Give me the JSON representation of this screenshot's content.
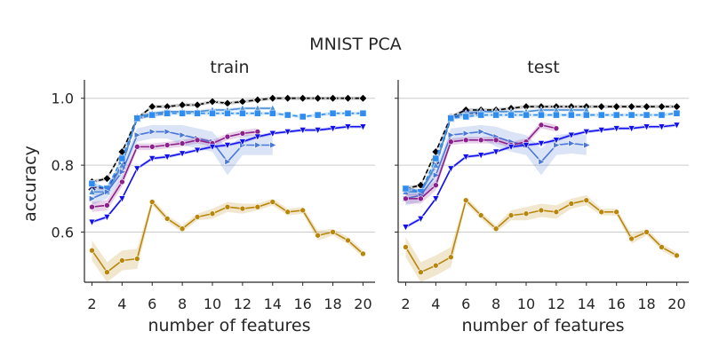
{
  "chart_data": {
    "type": "line",
    "suptitle": "MNIST PCA",
    "xlabel": "number of features",
    "ylabel": "accuracy",
    "xlim": [
      1.5,
      20.8
    ],
    "ylim": [
      0.45,
      1.055
    ],
    "xticks": [
      2,
      4,
      6,
      8,
      10,
      12,
      14,
      16,
      18,
      20
    ],
    "yticks": [
      0.6,
      0.8,
      1.0
    ],
    "ytick_labels": [
      "0.6",
      "0.8",
      "1.0"
    ],
    "grid": "horizontal",
    "panels": [
      {
        "title": "train",
        "series": [
          {
            "name": "black-diamond",
            "color": "#000000",
            "dash": "dashed",
            "marker": "diamond",
            "x": [
              2,
              3,
              4,
              5,
              6,
              7,
              8,
              9,
              10,
              11,
              12,
              13,
              14,
              15,
              16,
              17,
              18,
              19,
              20
            ],
            "y": [
              0.75,
              0.76,
              0.84,
              0.94,
              0.975,
              0.975,
              0.98,
              0.98,
              0.99,
              0.985,
              0.99,
              0.995,
              1.0,
              1.0,
              1.0,
              1.0,
              1.0,
              1.0,
              1.0
            ],
            "band": [
              0.005,
              0.005,
              0.005,
              0.005,
              0.005,
              0.005,
              0.005,
              0.005,
              0.005,
              0.005,
              0.005,
              0.005,
              0.005,
              0.005,
              0.005,
              0.005,
              0.005,
              0.005,
              0.005
            ]
          },
          {
            "name": "navy-x",
            "color": "#1a1a6e",
            "dash": "dashed",
            "marker": "x",
            "x": [
              2,
              3,
              4,
              5,
              6,
              7
            ],
            "y": [
              0.735,
              0.73,
              0.8,
              0.94,
              0.95,
              0.955
            ],
            "band": [
              0.005,
              0.005,
              0.01,
              0.005,
              0.005,
              0.005
            ]
          },
          {
            "name": "light-blue-triangle-up",
            "color": "#4f8fd6",
            "dash": "solid",
            "marker": "triangle-up",
            "x": [
              2,
              3,
              4,
              5,
              6,
              7,
              8,
              9,
              10,
              11,
              12,
              13,
              14
            ],
            "y": [
              0.72,
              0.72,
              0.8,
              0.945,
              0.955,
              0.96,
              0.96,
              0.96,
              0.965,
              0.965,
              0.97,
              0.97,
              0.97
            ],
            "band": [
              0.01,
              0.01,
              0.01,
              0.005,
              0.005,
              0.005,
              0.005,
              0.005,
              0.005,
              0.005,
              0.005,
              0.005,
              0.005
            ]
          },
          {
            "name": "blue-square",
            "color": "#2f8cf0",
            "dash": "dashed",
            "marker": "square",
            "x": [
              2,
              3,
              4,
              5,
              6,
              7,
              8,
              9,
              10,
              11,
              12,
              13,
              14,
              15,
              16,
              17,
              18,
              19,
              20
            ],
            "y": [
              0.745,
              0.73,
              0.82,
              0.94,
              0.95,
              0.955,
              0.955,
              0.955,
              0.955,
              0.955,
              0.955,
              0.955,
              0.955,
              0.95,
              0.945,
              0.95,
              0.955,
              0.955,
              0.955
            ],
            "band": [
              0.005,
              0.005,
              0.005,
              0.005,
              0.005,
              0.005,
              0.005,
              0.005,
              0.005,
              0.005,
              0.005,
              0.005,
              0.005,
              0.005,
              0.005,
              0.005,
              0.005,
              0.005,
              0.005
            ]
          },
          {
            "name": "steelblue-triangle-right",
            "color": "#4a78d8",
            "dash": "solid",
            "marker": "triangle-right",
            "x": [
              2,
              3,
              4,
              5,
              6,
              7,
              8,
              9,
              10,
              11,
              12,
              13,
              14
            ],
            "y": [
              0.7,
              0.72,
              0.78,
              0.89,
              0.9,
              0.9,
              0.89,
              0.88,
              0.87,
              0.81,
              0.86,
              0.86,
              0.86
            ],
            "band": [
              0.02,
              0.02,
              0.02,
              0.02,
              0.02,
              0.02,
              0.03,
              0.03,
              0.03,
              0.04,
              0.03,
              0.03,
              0.03
            ]
          },
          {
            "name": "purple-dot",
            "color": "#8b1f8b",
            "dash": "solid",
            "marker": "circle",
            "x": [
              2,
              3,
              4,
              5,
              6,
              7,
              8,
              9,
              10,
              11,
              12,
              13
            ],
            "y": [
              0.675,
              0.68,
              0.75,
              0.855,
              0.855,
              0.86,
              0.865,
              0.875,
              0.865,
              0.885,
              0.895,
              0.9
            ],
            "band": [
              0.015,
              0.015,
              0.015,
              0.01,
              0.01,
              0.01,
              0.01,
              0.01,
              0.01,
              0.01,
              0.01,
              0.01
            ]
          },
          {
            "name": "blue-triangle-down",
            "color": "#1010ee",
            "dash": "solid",
            "marker": "triangle-down",
            "x": [
              2,
              3,
              4,
              5,
              6,
              7,
              8,
              9,
              10,
              11,
              12,
              13,
              14,
              15,
              16,
              17,
              18,
              19,
              20
            ],
            "y": [
              0.63,
              0.645,
              0.7,
              0.79,
              0.82,
              0.825,
              0.835,
              0.845,
              0.855,
              0.86,
              0.87,
              0.885,
              0.895,
              0.9,
              0.905,
              0.905,
              0.91,
              0.915,
              0.915
            ],
            "band": [
              0.005,
              0.005,
              0.005,
              0.005,
              0.005,
              0.005,
              0.005,
              0.005,
              0.005,
              0.005,
              0.005,
              0.005,
              0.005,
              0.005,
              0.005,
              0.005,
              0.005,
              0.005,
              0.005
            ]
          },
          {
            "name": "gold-dot",
            "color": "#b8860b",
            "dash": "solid",
            "marker": "circle",
            "x": [
              2,
              3,
              4,
              5,
              6,
              7,
              8,
              9,
              10,
              11,
              12,
              13,
              14,
              15,
              16,
              17,
              18,
              19,
              20
            ],
            "y": [
              0.545,
              0.48,
              0.515,
              0.52,
              0.69,
              0.64,
              0.61,
              0.645,
              0.655,
              0.675,
              0.67,
              0.675,
              0.69,
              0.66,
              0.665,
              0.59,
              0.6,
              0.575,
              0.535
            ],
            "band": [
              0.03,
              0.03,
              0.03,
              0.03,
              0.01,
              0.01,
              0.01,
              0.01,
              0.015,
              0.015,
              0.015,
              0.01,
              0.01,
              0.01,
              0.01,
              0.015,
              0.01,
              0.01,
              0.01
            ]
          }
        ]
      },
      {
        "title": "test",
        "series": [
          {
            "name": "black-diamond",
            "color": "#000000",
            "dash": "dashed",
            "marker": "diamond",
            "x": [
              2,
              3,
              4,
              5,
              6,
              7,
              8,
              9,
              10,
              11,
              12,
              13,
              14,
              15,
              16,
              17,
              18,
              19,
              20
            ],
            "y": [
              0.73,
              0.74,
              0.84,
              0.945,
              0.965,
              0.965,
              0.965,
              0.97,
              0.975,
              0.975,
              0.975,
              0.975,
              0.975,
              0.975,
              0.975,
              0.975,
              0.975,
              0.975,
              0.975
            ],
            "band": [
              0.005,
              0.005,
              0.005,
              0.005,
              0.005,
              0.005,
              0.005,
              0.005,
              0.005,
              0.005,
              0.005,
              0.005,
              0.005,
              0.005,
              0.005,
              0.005,
              0.005,
              0.005,
              0.005
            ]
          },
          {
            "name": "navy-x",
            "color": "#1a1a6e",
            "dash": "dashed",
            "marker": "x",
            "x": [
              2,
              3,
              4,
              5,
              6,
              7
            ],
            "y": [
              0.73,
              0.72,
              0.8,
              0.94,
              0.955,
              0.955
            ],
            "band": [
              0.005,
              0.005,
              0.01,
              0.005,
              0.005,
              0.005
            ]
          },
          {
            "name": "light-blue-triangle-up",
            "color": "#4f8fd6",
            "dash": "solid",
            "marker": "triangle-up",
            "x": [
              2,
              3,
              4,
              5,
              6,
              7,
              8,
              9,
              10,
              11,
              12,
              13,
              14
            ],
            "y": [
              0.72,
              0.72,
              0.8,
              0.945,
              0.955,
              0.96,
              0.96,
              0.96,
              0.96,
              0.965,
              0.965,
              0.965,
              0.965
            ],
            "band": [
              0.01,
              0.01,
              0.01,
              0.005,
              0.005,
              0.005,
              0.005,
              0.005,
              0.005,
              0.005,
              0.005,
              0.005,
              0.005
            ]
          },
          {
            "name": "blue-square",
            "color": "#2f8cf0",
            "dash": "dashed",
            "marker": "square",
            "x": [
              2,
              3,
              4,
              5,
              6,
              7,
              8,
              9,
              10,
              11,
              12,
              13,
              14,
              15,
              16,
              17,
              18,
              19,
              20
            ],
            "y": [
              0.73,
              0.72,
              0.82,
              0.94,
              0.945,
              0.95,
              0.95,
              0.95,
              0.95,
              0.95,
              0.95,
              0.95,
              0.95,
              0.95,
              0.95,
              0.95,
              0.95,
              0.95,
              0.955
            ],
            "band": [
              0.005,
              0.005,
              0.005,
              0.005,
              0.005,
              0.005,
              0.005,
              0.005,
              0.005,
              0.005,
              0.005,
              0.005,
              0.005,
              0.005,
              0.005,
              0.005,
              0.005,
              0.005,
              0.005
            ]
          },
          {
            "name": "steelblue-triangle-right",
            "color": "#4a78d8",
            "dash": "solid",
            "marker": "triangle-right",
            "x": [
              2,
              3,
              4,
              5,
              6,
              7,
              8,
              9,
              10,
              11,
              12,
              13,
              14
            ],
            "y": [
              0.7,
              0.71,
              0.77,
              0.89,
              0.895,
              0.9,
              0.885,
              0.87,
              0.86,
              0.81,
              0.86,
              0.865,
              0.86
            ],
            "band": [
              0.02,
              0.02,
              0.02,
              0.02,
              0.02,
              0.02,
              0.03,
              0.03,
              0.03,
              0.04,
              0.03,
              0.03,
              0.03
            ]
          },
          {
            "name": "purple-dot",
            "color": "#8b1f8b",
            "dash": "solid",
            "marker": "circle",
            "x": [
              2,
              3,
              4,
              5,
              6,
              7,
              8,
              9,
              10,
              11,
              12
            ],
            "y": [
              0.7,
              0.7,
              0.74,
              0.87,
              0.875,
              0.875,
              0.875,
              0.86,
              0.87,
              0.92,
              0.91
            ],
            "band": [
              0.015,
              0.015,
              0.015,
              0.01,
              0.01,
              0.01,
              0.01,
              0.01,
              0.01,
              0.01,
              0.01
            ]
          },
          {
            "name": "blue-triangle-down",
            "color": "#1010ee",
            "dash": "solid",
            "marker": "triangle-down",
            "x": [
              2,
              3,
              4,
              5,
              6,
              7,
              8,
              9,
              10,
              11,
              12,
              13,
              14,
              15,
              16,
              17,
              18,
              19,
              20
            ],
            "y": [
              0.615,
              0.64,
              0.7,
              0.79,
              0.825,
              0.83,
              0.84,
              0.855,
              0.86,
              0.865,
              0.875,
              0.89,
              0.9,
              0.905,
              0.91,
              0.91,
              0.915,
              0.915,
              0.92
            ],
            "band": [
              0.005,
              0.005,
              0.005,
              0.005,
              0.005,
              0.005,
              0.005,
              0.005,
              0.005,
              0.005,
              0.005,
              0.005,
              0.005,
              0.005,
              0.005,
              0.005,
              0.005,
              0.005,
              0.005
            ]
          },
          {
            "name": "gold-dot",
            "color": "#b8860b",
            "dash": "solid",
            "marker": "circle",
            "x": [
              2,
              3,
              4,
              5,
              6,
              7,
              8,
              9,
              10,
              11,
              12,
              13,
              14,
              15,
              16,
              17,
              18,
              19,
              20
            ],
            "y": [
              0.555,
              0.48,
              0.5,
              0.525,
              0.695,
              0.65,
              0.61,
              0.65,
              0.655,
              0.665,
              0.66,
              0.685,
              0.695,
              0.66,
              0.66,
              0.58,
              0.6,
              0.555,
              0.53
            ],
            "band": [
              0.03,
              0.03,
              0.03,
              0.03,
              0.01,
              0.01,
              0.01,
              0.015,
              0.02,
              0.02,
              0.02,
              0.015,
              0.015,
              0.01,
              0.01,
              0.015,
              0.01,
              0.01,
              0.01
            ]
          }
        ]
      }
    ]
  }
}
